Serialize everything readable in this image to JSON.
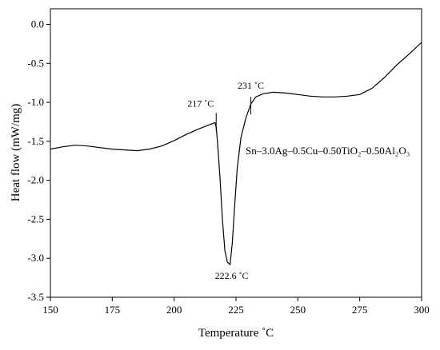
{
  "chart_data": {
    "type": "line",
    "title": "",
    "xlabel": "Temperature ˚C",
    "ylabel": "Heat flow (mW/mg)",
    "xlim": [
      150,
      300
    ],
    "ylim": [
      -3.5,
      0.2
    ],
    "xticks": [
      "150",
      "175",
      "200",
      "225",
      "250",
      "275",
      "300"
    ],
    "yticks": [
      "0.0",
      "-0.5",
      "-1.0",
      "-1.5",
      "-2.0",
      "-2.5",
      "-3.0",
      "-3.5"
    ],
    "grid": false,
    "series_label": "Sn–3.0Ag–0.5Cu–0.50TiO₂–0.50Al₂O₃",
    "series": [
      {
        "x": [
          150,
          155,
          160,
          165,
          170,
          175,
          180,
          185,
          190,
          195,
          200,
          205,
          210,
          214,
          216.5,
          217,
          217.5,
          218.5,
          219.5,
          220.5,
          221.5,
          222.6,
          223.5,
          224.5,
          225.5,
          227,
          229,
          231,
          233,
          236,
          240,
          245,
          250,
          255,
          260,
          265,
          270,
          275,
          280,
          285,
          290,
          295,
          300
        ],
        "y": [
          -1.6,
          -1.57,
          -1.55,
          -1.56,
          -1.58,
          -1.6,
          -1.61,
          -1.62,
          -1.6,
          -1.56,
          -1.49,
          -1.41,
          -1.34,
          -1.29,
          -1.26,
          -1.32,
          -1.5,
          -1.95,
          -2.5,
          -2.9,
          -3.05,
          -3.08,
          -2.8,
          -2.3,
          -1.85,
          -1.45,
          -1.2,
          -1.02,
          -0.93,
          -0.89,
          -0.87,
          -0.88,
          -0.9,
          -0.92,
          -0.93,
          -0.93,
          -0.92,
          -0.9,
          -0.82,
          -0.68,
          -0.52,
          -0.38,
          -0.23
        ]
      }
    ],
    "annotations": [
      {
        "text": "217 ˚C",
        "x": 217,
        "y": -1.26
      },
      {
        "text": "231 ˚C",
        "x": 231,
        "y": -0.95
      },
      {
        "text": "222.6 ˚C",
        "x": 222.6,
        "y": -3.08
      }
    ]
  }
}
